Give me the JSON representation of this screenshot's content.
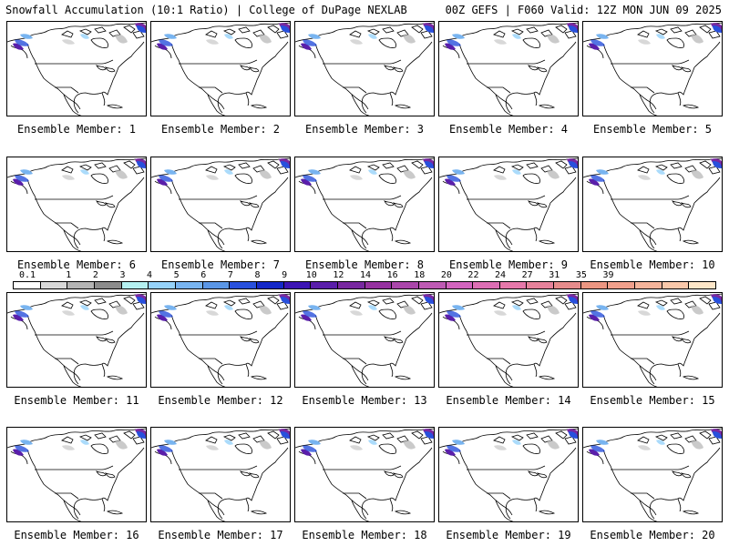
{
  "header": {
    "left": "Snowfall Accumulation (10:1 Ratio) | College of DuPage NEXLAB",
    "right": "00Z GEFS | F060 Valid: 12Z MON JUN 09 2025"
  },
  "members": [
    {
      "label": "Ensemble Member: 1"
    },
    {
      "label": "Ensemble Member: 2"
    },
    {
      "label": "Ensemble Member: 3"
    },
    {
      "label": "Ensemble Member: 4"
    },
    {
      "label": "Ensemble Member: 5"
    },
    {
      "label": "Ensemble Member: 6"
    },
    {
      "label": "Ensemble Member: 7"
    },
    {
      "label": "Ensemble Member: 8"
    },
    {
      "label": "Ensemble Member: 9"
    },
    {
      "label": "Ensemble Member: 10"
    },
    {
      "label": "Ensemble Member: 11"
    },
    {
      "label": "Ensemble Member: 12"
    },
    {
      "label": "Ensemble Member: 13"
    },
    {
      "label": "Ensemble Member: 14"
    },
    {
      "label": "Ensemble Member: 15"
    },
    {
      "label": "Ensemble Member: 16"
    },
    {
      "label": "Ensemble Member: 17"
    },
    {
      "label": "Ensemble Member: 18"
    },
    {
      "label": "Ensemble Member: 19"
    },
    {
      "label": "Ensemble Member: 20"
    }
  ],
  "scale": {
    "labels": [
      "0.1",
      "1",
      "2",
      "3",
      "4",
      "5",
      "6",
      "7",
      "8",
      "9",
      "10",
      "12",
      "14",
      "16",
      "18",
      "20",
      "22",
      "24",
      "27",
      "31",
      "35",
      "39"
    ],
    "colors": [
      "#ffffff",
      "#d8d8d8",
      "#b4b4b4",
      "#8c8c8c",
      "#b4f0f0",
      "#96d2fa",
      "#78b4f0",
      "#5a96e6",
      "#2850dc",
      "#1428c8",
      "#3c14b4",
      "#5a1eaa",
      "#7828a0",
      "#9632a0",
      "#aa46aa",
      "#be5ab4",
      "#d264be",
      "#dc6eb4",
      "#e678aa",
      "#e6829b",
      "#e68c8c",
      "#eb9682",
      "#f0a08c",
      "#f5b49b",
      "#fac8aa",
      "#fde6c8"
    ]
  }
}
